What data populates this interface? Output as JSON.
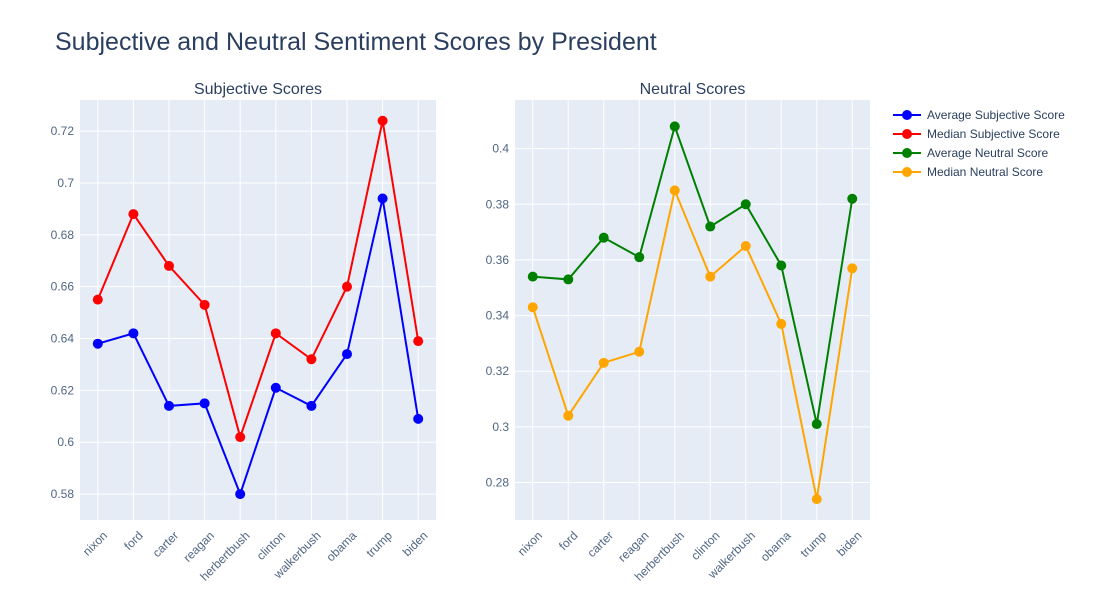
{
  "title": "Subjective and Neutral Sentiment Scores by President",
  "chart_data": [
    {
      "type": "line",
      "title": "Subjective Scores",
      "categories": [
        "nixon",
        "ford",
        "carter",
        "reagan",
        "herbertbush",
        "clinton",
        "walkerbush",
        "obama",
        "trump",
        "biden"
      ],
      "ylim": [
        0.57,
        0.732
      ],
      "yticks": [
        "0.58",
        "0.6",
        "0.62",
        "0.64",
        "0.66",
        "0.68",
        "0.7",
        "0.72"
      ],
      "grid": true,
      "series": [
        {
          "name": "Average Subjective Score",
          "color": "#0000ff",
          "values": [
            0.638,
            0.642,
            0.614,
            0.615,
            0.58,
            0.621,
            0.614,
            0.634,
            0.694,
            0.609
          ]
        },
        {
          "name": "Median Subjective Score",
          "color": "#ff0000",
          "values": [
            0.655,
            0.688,
            0.668,
            0.653,
            0.602,
            0.642,
            0.632,
            0.66,
            0.724,
            0.639
          ]
        }
      ]
    },
    {
      "type": "line",
      "title": "Neutral Scores",
      "categories": [
        "nixon",
        "ford",
        "carter",
        "reagan",
        "herbertbush",
        "clinton",
        "walkerbush",
        "obama",
        "trump",
        "biden"
      ],
      "ylim": [
        0.2665,
        0.4175
      ],
      "yticks": [
        "0.28",
        "0.3",
        "0.32",
        "0.34",
        "0.36",
        "0.38",
        "0.4"
      ],
      "grid": true,
      "series": [
        {
          "name": "Average Neutral Score",
          "color": "#008000",
          "values": [
            0.354,
            0.353,
            0.368,
            0.361,
            0.408,
            0.372,
            0.38,
            0.358,
            0.301,
            0.382
          ]
        },
        {
          "name": "Median Neutral Score",
          "color": "#ffa500",
          "values": [
            0.343,
            0.304,
            0.323,
            0.327,
            0.385,
            0.354,
            0.365,
            0.337,
            0.274,
            0.357
          ]
        }
      ]
    }
  ],
  "legend": {
    "position": "top-right",
    "items": [
      {
        "label": "Average Subjective Score",
        "color": "#0000ff"
      },
      {
        "label": "Median Subjective Score",
        "color": "#ff0000"
      },
      {
        "label": "Average Neutral Score",
        "color": "#008000"
      },
      {
        "label": "Median Neutral Score",
        "color": "#ffa500"
      }
    ]
  },
  "colors": {
    "plot_bg": "#e5ecf6",
    "grid": "#ffffff",
    "text": "#2a3f5f",
    "tick": "#506784"
  }
}
